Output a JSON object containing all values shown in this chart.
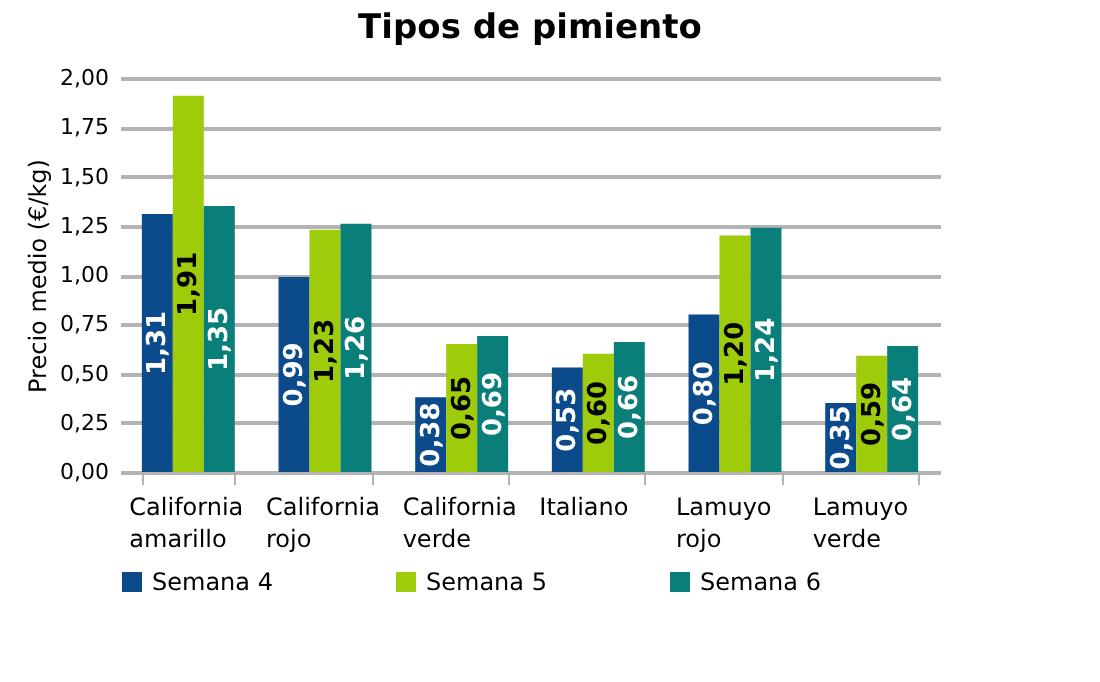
{
  "chart_data": {
    "type": "bar",
    "title": "Tipos de pimiento",
    "ylabel": "Precio medio (€/kg)",
    "categories": [
      "California amarillo",
      "California rojo",
      "California verde",
      "Italiano",
      "Lamuyo rojo",
      "Lamuyo verde"
    ],
    "series": [
      {
        "name": "Semana 4",
        "color": "#0b4a8b",
        "values": [
          1.31,
          0.99,
          0.38,
          0.53,
          0.8,
          0.35
        ],
        "value_labels": [
          "1,31",
          "0,99",
          "0,38",
          "0,53",
          "0,80",
          "0,35"
        ]
      },
      {
        "name": "Semana 5",
        "color": "#9ecb0a",
        "values": [
          1.91,
          1.23,
          0.65,
          0.6,
          1.2,
          0.59
        ],
        "value_labels": [
          "1,91",
          "1,23",
          "0,65",
          "0,60",
          "1,20",
          "0,59"
        ]
      },
      {
        "name": "Semana 6",
        "color": "#0a7f7a",
        "values": [
          1.35,
          1.26,
          0.69,
          0.66,
          1.24,
          0.64
        ],
        "value_labels": [
          "1,35",
          "1,26",
          "0,69",
          "0,66",
          "1,24",
          "0,64"
        ]
      }
    ],
    "ylim": [
      0,
      2
    ],
    "yticks": [
      {
        "value": 0,
        "label": "0,00"
      },
      {
        "value": 0.25,
        "label": "0,25"
      },
      {
        "value": 0.5,
        "label": "0,50"
      },
      {
        "value": 0.75,
        "label": "0,75"
      },
      {
        "value": 1,
        "label": "1,00"
      },
      {
        "value": 1.25,
        "label": "1,25"
      },
      {
        "value": 1.5,
        "label": "1,50"
      },
      {
        "value": 1.75,
        "label": "1,75"
      },
      {
        "value": 2,
        "label": "2,00"
      }
    ],
    "grid": "y",
    "legend": "bottom"
  }
}
